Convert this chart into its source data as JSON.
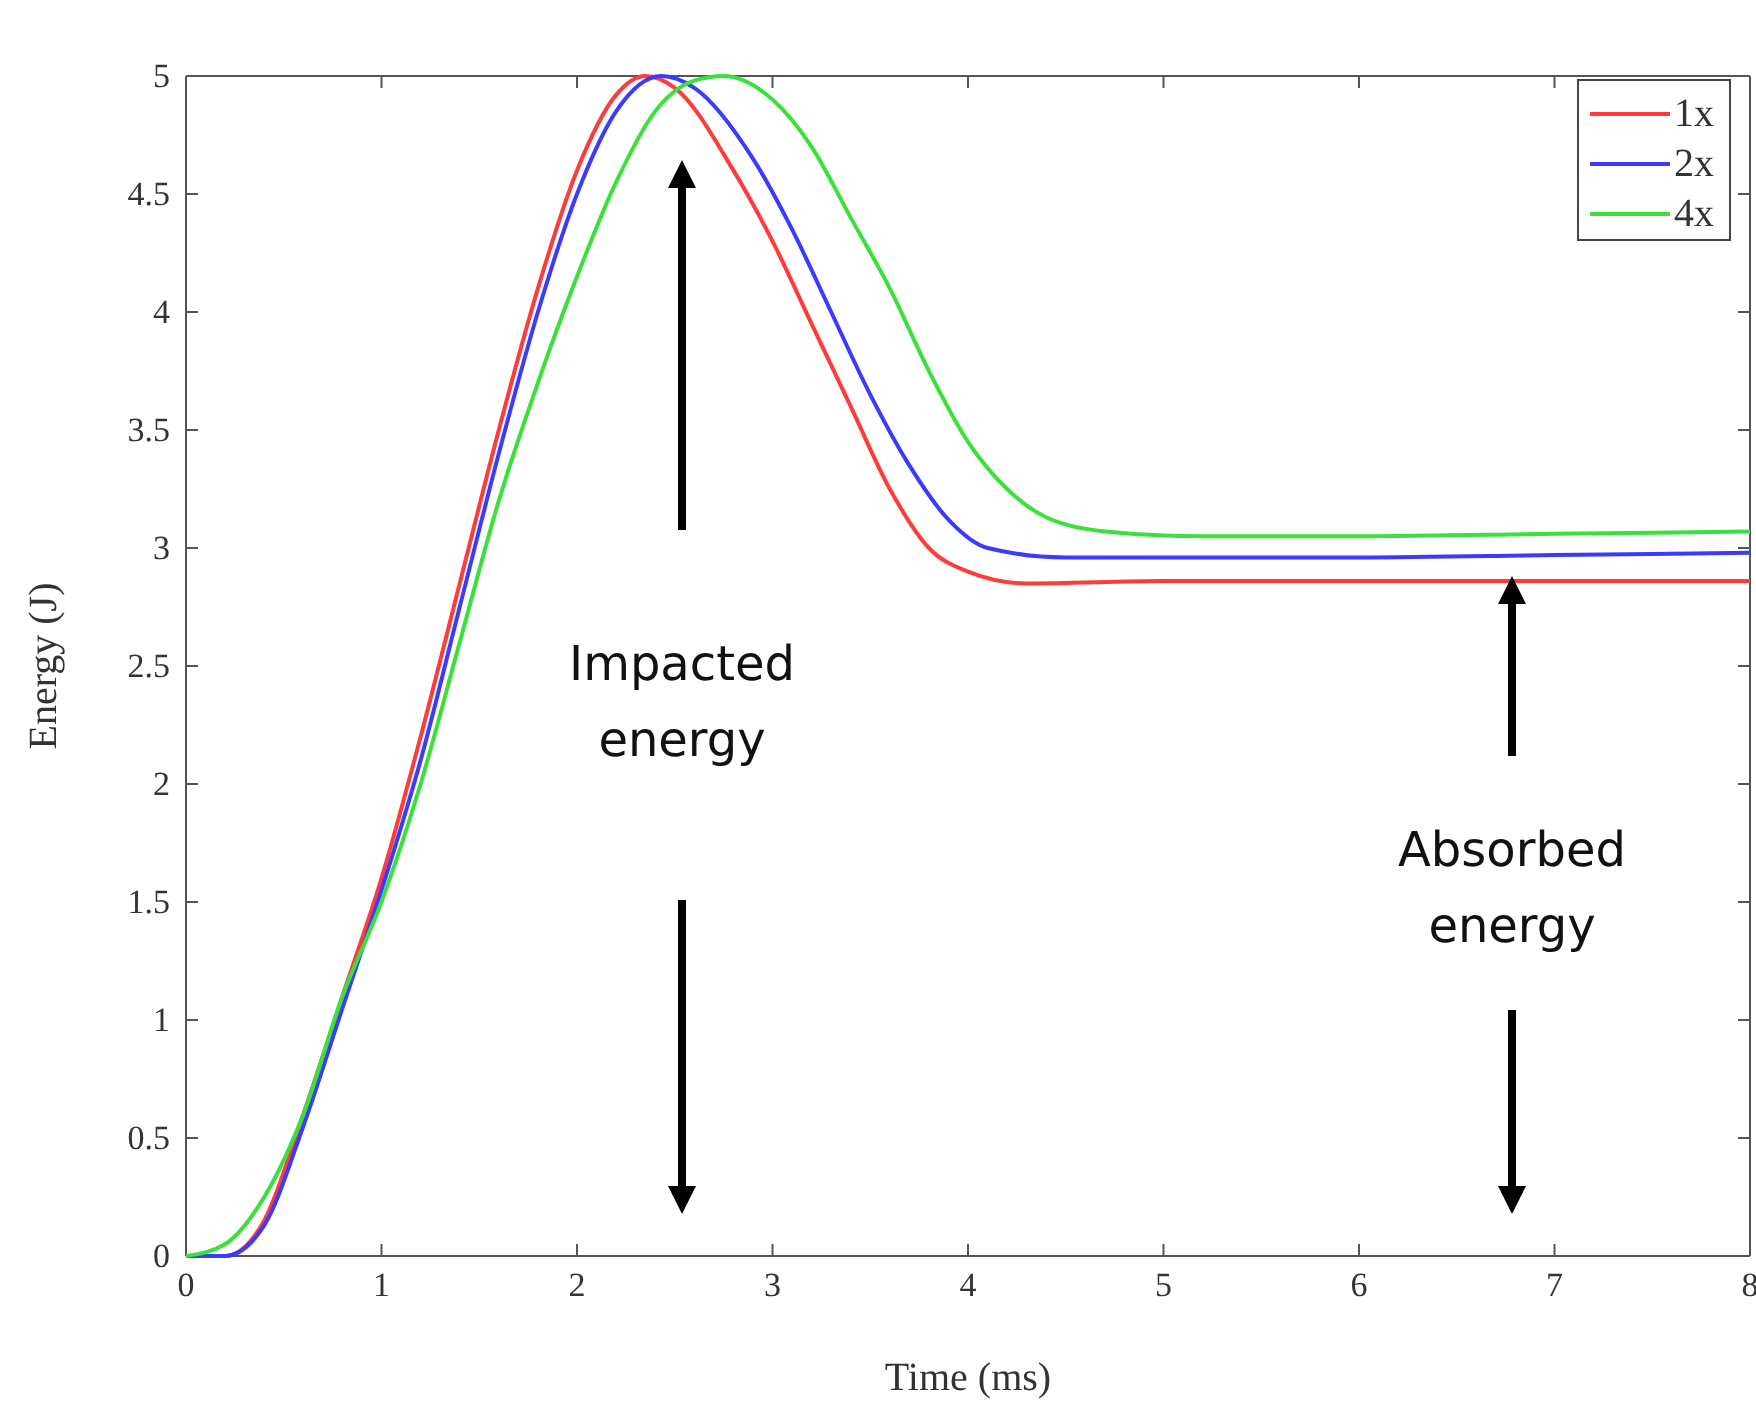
{
  "chart_data": {
    "type": "line",
    "xlabel": "Time (ms)",
    "ylabel": "Energy (J)",
    "xlim": [
      0,
      8
    ],
    "xticks": [
      0,
      1,
      2,
      3,
      4,
      5,
      6,
      7,
      8
    ],
    "ylim": [
      0,
      5
    ],
    "yticks": [
      0,
      0.5,
      1,
      1.5,
      2,
      2.5,
      3,
      3.5,
      4,
      4.5,
      5
    ],
    "grid": false,
    "legend": "top right",
    "line_style": "solid",
    "marker": "none",
    "annotations": [
      "Impacted energy",
      "Absorbed energy"
    ],
    "series": [
      {
        "name": "1x",
        "color": "#ff3b3b",
        "x": [
          0,
          0.2,
          0.4,
          0.6,
          0.8,
          1.0,
          1.2,
          1.4,
          1.6,
          1.8,
          2.0,
          2.2,
          2.35,
          2.5,
          2.8,
          3.0,
          3.2,
          3.4,
          3.6,
          3.8,
          4.0,
          4.3,
          5,
          6,
          7,
          8
        ],
        "values": [
          0,
          0,
          0.15,
          0.6,
          1.1,
          1.6,
          2.2,
          2.85,
          3.5,
          4.1,
          4.6,
          4.92,
          5.0,
          4.95,
          4.6,
          4.3,
          3.95,
          3.6,
          3.25,
          3.0,
          2.9,
          2.85,
          2.86,
          2.86,
          2.86,
          2.86
        ]
      },
      {
        "name": "2x",
        "color": "#3b3bff",
        "x": [
          0,
          0.2,
          0.4,
          0.6,
          0.8,
          1.0,
          1.2,
          1.4,
          1.6,
          1.8,
          2.0,
          2.2,
          2.43,
          2.6,
          2.9,
          3.1,
          3.3,
          3.5,
          3.7,
          3.9,
          4.1,
          4.5,
          5,
          6,
          7,
          8
        ],
        "values": [
          0,
          0,
          0.13,
          0.55,
          1.05,
          1.55,
          2.1,
          2.75,
          3.4,
          4.0,
          4.5,
          4.85,
          5.0,
          4.95,
          4.65,
          4.35,
          4.0,
          3.65,
          3.35,
          3.12,
          3.0,
          2.96,
          2.96,
          2.96,
          2.97,
          2.98
        ]
      },
      {
        "name": "4x",
        "color": "#3be03b",
        "x": [
          0,
          0.2,
          0.4,
          0.6,
          0.8,
          1.0,
          1.2,
          1.4,
          1.6,
          1.8,
          2.0,
          2.2,
          2.4,
          2.6,
          2.75,
          3.0,
          3.2,
          3.4,
          3.6,
          3.8,
          4.0,
          4.2,
          4.4,
          4.7,
          5.2,
          6,
          7,
          8
        ],
        "values": [
          0,
          0.05,
          0.25,
          0.6,
          1.1,
          1.5,
          2.0,
          2.6,
          3.2,
          3.7,
          4.15,
          4.55,
          4.85,
          4.98,
          5.0,
          4.9,
          4.7,
          4.4,
          4.1,
          3.75,
          3.45,
          3.25,
          3.13,
          3.07,
          3.05,
          3.05,
          3.06,
          3.07
        ]
      }
    ]
  }
}
